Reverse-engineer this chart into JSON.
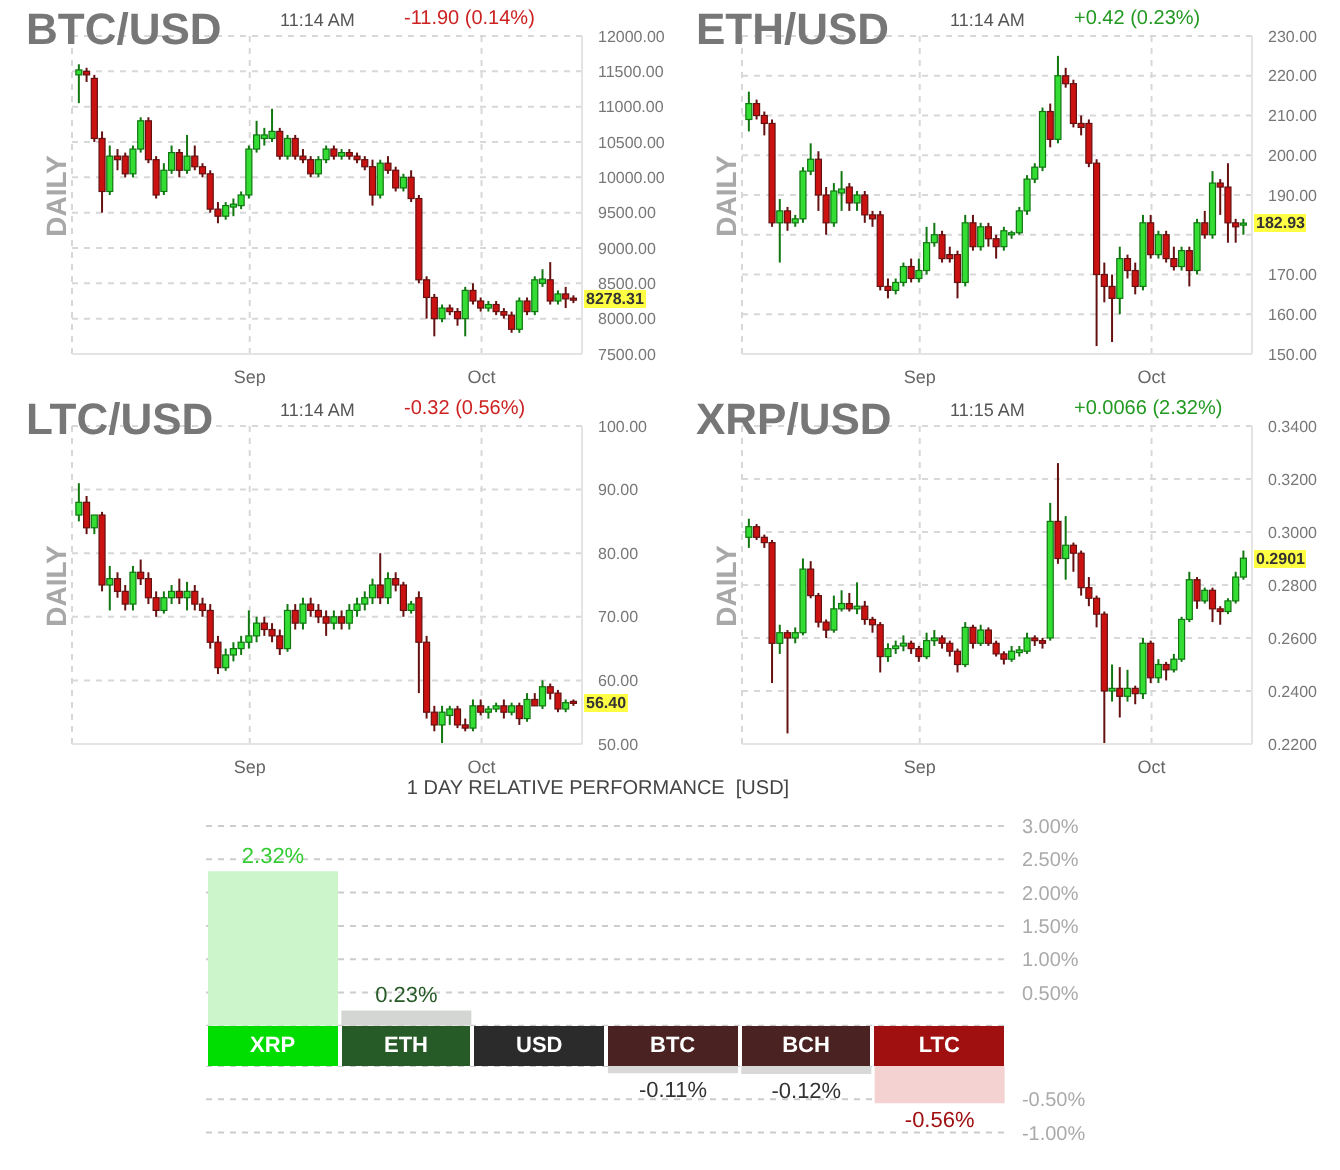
{
  "chart_data": [
    {
      "type": "candlestick",
      "title": "BTC/USD",
      "ylabel": "DAILY",
      "grid": true,
      "x": [
        "--08-10",
        "--08-11",
        "--08-12",
        "--08-13",
        "--08-14",
        "--08-15",
        "--08-16",
        "--08-17",
        "--08-18",
        "--08-19",
        "--08-20",
        "--08-21",
        "--08-22",
        "--08-23",
        "--08-24",
        "--08-25",
        "--08-26",
        "--08-27",
        "--08-28",
        "--08-29",
        "--08-30",
        "--08-31",
        "--09-01",
        "--09-02",
        "--09-03",
        "--09-04",
        "--09-05",
        "--09-06",
        "--09-07",
        "--09-08",
        "--09-09",
        "--09-10",
        "--09-11",
        "--09-12",
        "--09-13",
        "--09-14",
        "--09-15",
        "--09-16",
        "--09-17",
        "--09-18",
        "--09-19",
        "--09-20",
        "--09-21",
        "--09-22",
        "--09-23",
        "--09-24",
        "--09-25",
        "--09-26",
        "--09-27",
        "--09-28",
        "--09-29",
        "--09-30",
        "--10-01",
        "--10-02",
        "--10-03",
        "--10-04",
        "--10-05",
        "--10-06",
        "--10-07",
        "--10-08",
        "--10-09",
        "--10-10",
        "--10-11",
        "--10-12",
        "--10-13"
      ],
      "ohlc": [
        [
          11450,
          11600,
          11050,
          11520
        ],
        [
          11500,
          11550,
          11350,
          11450
        ],
        [
          11400,
          11450,
          10500,
          10550
        ],
        [
          10550,
          10650,
          9500,
          9800
        ],
        [
          9800,
          10450,
          9750,
          10300
        ],
        [
          10300,
          10400,
          10100,
          10250
        ],
        [
          10300,
          10350,
          10000,
          10050
        ],
        [
          10050,
          10450,
          10000,
          10400
        ],
        [
          10400,
          10850,
          10350,
          10800
        ],
        [
          10800,
          10850,
          10200,
          10250
        ],
        [
          10250,
          10300,
          9700,
          9750
        ],
        [
          9800,
          10200,
          9750,
          10100
        ],
        [
          10100,
          10450,
          10050,
          10350
        ],
        [
          10350,
          10400,
          10000,
          10100
        ],
        [
          10100,
          10600,
          10050,
          10300
        ],
        [
          10300,
          10450,
          10100,
          10150
        ],
        [
          10150,
          10200,
          10000,
          10050
        ],
        [
          10050,
          10100,
          9500,
          9550
        ],
        [
          9550,
          9650,
          9350,
          9450
        ],
        [
          9450,
          9650,
          9400,
          9600
        ],
        [
          9580,
          9700,
          9450,
          9620
        ],
        [
          9600,
          9800,
          9550,
          9750
        ],
        [
          9750,
          10450,
          9700,
          10400
        ],
        [
          10400,
          10800,
          10350,
          10600
        ],
        [
          10550,
          10700,
          10450,
          10600
        ],
        [
          10550,
          10970,
          10500,
          10650
        ],
        [
          10650,
          10700,
          10250,
          10300
        ],
        [
          10300,
          10600,
          10250,
          10550
        ],
        [
          10550,
          10600,
          10250,
          10300
        ],
        [
          10300,
          10400,
          10200,
          10250
        ],
        [
          10250,
          10300,
          10000,
          10050
        ],
        [
          10050,
          10300,
          10000,
          10250
        ],
        [
          10250,
          10450,
          10200,
          10400
        ],
        [
          10400,
          10450,
          10250,
          10300
        ],
        [
          10300,
          10400,
          10250,
          10350
        ],
        [
          10350,
          10400,
          10250,
          10300
        ],
        [
          10300,
          10350,
          10200,
          10250
        ],
        [
          10250,
          10300,
          10100,
          10150
        ],
        [
          10150,
          10250,
          9600,
          9750
        ],
        [
          9750,
          10250,
          9700,
          10200
        ],
        [
          10200,
          10300,
          10050,
          10100
        ],
        [
          10100,
          10150,
          9800,
          9850
        ],
        [
          9850,
          10050,
          9800,
          10000
        ],
        [
          10000,
          10100,
          9650,
          9700
        ],
        [
          9700,
          9750,
          8500,
          8550
        ],
        [
          8550,
          8600,
          8000,
          8300
        ],
        [
          8300,
          8350,
          7750,
          8000
        ],
        [
          8000,
          8200,
          7950,
          8150
        ],
        [
          8150,
          8200,
          8050,
          8100
        ],
        [
          8100,
          8150,
          7900,
          8000
        ],
        [
          8000,
          8450,
          7750,
          8400
        ],
        [
          8400,
          8500,
          8200,
          8250
        ],
        [
          8250,
          8300,
          8100,
          8150
        ],
        [
          8150,
          8250,
          8100,
          8200
        ],
        [
          8200,
          8250,
          8050,
          8100
        ],
        [
          8100,
          8150,
          8000,
          8050
        ],
        [
          8050,
          8100,
          7800,
          7850
        ],
        [
          7850,
          8300,
          7800,
          8250
        ],
        [
          8250,
          8300,
          8050,
          8100
        ],
        [
          8100,
          8600,
          8050,
          8550
        ],
        [
          8500,
          8700,
          8450,
          8560
        ],
        [
          8550,
          8800,
          8200,
          8250
        ],
        [
          8250,
          8400,
          8200,
          8350
        ],
        [
          8350,
          8450,
          8150,
          8280
        ],
        [
          8290,
          8330,
          8220,
          8278.31
        ]
      ],
      "xlim": [
        "--08-09",
        "--10-14"
      ],
      "xticks": [
        {
          "value": "--09-01",
          "label": "Sep"
        },
        {
          "value": "--10-01",
          "label": "Oct"
        }
      ],
      "ylim": [
        7500,
        12000
      ],
      "yticks": [
        {
          "value": 7500,
          "label": "7500.00"
        },
        {
          "value": 8000,
          "label": "8000.00"
        },
        {
          "value": 8500,
          "label": "8500.00"
        },
        {
          "value": 9000,
          "label": "9000.00"
        },
        {
          "value": 9500,
          "label": "9500.00"
        },
        {
          "value": 10000,
          "label": "10000.00"
        },
        {
          "value": 10500,
          "label": "10500.00"
        },
        {
          "value": 11000,
          "label": "11000.00"
        },
        {
          "value": 11500,
          "label": "11500.00"
        },
        {
          "value": 12000,
          "label": "12000.00"
        }
      ],
      "annotations": [
        "11:14 AM",
        "-11.90 (0.14%)",
        {
          "text": "8278.31",
          "x": "--10-13",
          "y": 8278.31
        }
      ]
    },
    {
      "type": "candlestick",
      "title": "ETH/USD",
      "ylabel": "DAILY",
      "grid": true,
      "x": [
        "--08-10",
        "--08-11",
        "--08-12",
        "--08-13",
        "--08-14",
        "--08-15",
        "--08-16",
        "--08-17",
        "--08-18",
        "--08-19",
        "--08-20",
        "--08-21",
        "--08-22",
        "--08-23",
        "--08-24",
        "--08-25",
        "--08-26",
        "--08-27",
        "--08-28",
        "--08-29",
        "--08-30",
        "--08-31",
        "--09-01",
        "--09-02",
        "--09-03",
        "--09-04",
        "--09-05",
        "--09-06",
        "--09-07",
        "--09-08",
        "--09-09",
        "--09-10",
        "--09-11",
        "--09-12",
        "--09-13",
        "--09-14",
        "--09-15",
        "--09-16",
        "--09-17",
        "--09-18",
        "--09-19",
        "--09-20",
        "--09-21",
        "--09-22",
        "--09-23",
        "--09-24",
        "--09-25",
        "--09-26",
        "--09-27",
        "--09-28",
        "--09-29",
        "--09-30",
        "--10-01",
        "--10-02",
        "--10-03",
        "--10-04",
        "--10-05",
        "--10-06",
        "--10-07",
        "--10-08",
        "--10-09",
        "--10-10",
        "--10-11",
        "--10-12",
        "--10-13"
      ],
      "ohlc": [
        [
          209,
          216,
          206,
          213
        ],
        [
          213,
          214,
          209,
          210
        ],
        [
          210,
          211,
          205,
          208
        ],
        [
          208,
          209,
          182,
          183
        ],
        [
          183,
          189,
          173,
          186
        ],
        [
          186,
          187,
          181,
          183
        ],
        [
          183,
          185,
          182,
          184
        ],
        [
          184,
          197,
          183,
          196
        ],
        [
          196,
          203,
          195,
          199
        ],
        [
          199,
          201,
          186,
          190
        ],
        [
          190,
          192,
          180,
          183
        ],
        [
          183,
          193,
          182,
          191
        ],
        [
          190.5,
          196,
          186,
          191.5
        ],
        [
          192,
          193,
          186,
          188
        ],
        [
          188,
          191,
          186,
          190
        ],
        [
          190,
          191,
          183,
          185
        ],
        [
          185,
          186,
          182,
          184
        ],
        [
          185,
          186,
          166,
          167
        ],
        [
          167,
          169,
          164,
          166
        ],
        [
          166,
          169,
          165,
          168
        ],
        [
          168,
          173,
          167,
          172
        ],
        [
          172,
          174,
          168,
          169
        ],
        [
          169,
          174,
          168,
          171
        ],
        [
          171,
          182,
          170,
          178
        ],
        [
          178,
          183,
          177,
          180
        ],
        [
          180,
          181,
          173,
          174
        ],
        [
          175,
          177,
          173,
          174
        ],
        [
          175,
          176,
          164,
          168
        ],
        [
          168,
          185,
          167,
          183
        ],
        [
          183,
          185,
          176,
          177
        ],
        [
          177,
          183,
          176,
          182
        ],
        [
          182,
          183,
          177,
          179
        ],
        [
          179,
          180,
          174,
          177
        ],
        [
          177,
          182,
          176,
          181
        ],
        [
          180,
          181,
          179,
          180.5
        ],
        [
          180.5,
          187,
          180,
          186
        ],
        [
          186,
          195,
          185,
          194
        ],
        [
          194,
          198,
          193,
          197
        ],
        [
          197,
          212,
          196,
          211
        ],
        [
          211,
          213,
          202,
          204
        ],
        [
          204,
          225,
          203,
          220
        ],
        [
          220,
          222,
          217,
          218
        ],
        [
          218,
          219,
          207,
          208
        ],
        [
          208,
          210,
          205,
          207
        ],
        [
          208,
          209,
          197,
          198
        ],
        [
          198,
          199,
          152,
          170
        ],
        [
          170,
          173,
          163,
          167
        ],
        [
          167,
          170,
          153,
          164
        ],
        [
          164,
          177,
          160,
          174
        ],
        [
          174,
          175,
          169,
          171
        ],
        [
          171,
          173,
          165,
          167
        ],
        [
          167,
          185,
          166,
          183
        ],
        [
          183,
          185,
          174,
          175
        ],
        [
          175,
          181,
          174,
          180
        ],
        [
          180,
          181,
          173,
          174
        ],
        [
          174,
          177,
          171,
          172
        ],
        [
          172,
          177,
          171,
          176
        ],
        [
          176,
          177,
          167,
          171
        ],
        [
          171,
          184,
          170,
          183
        ],
        [
          183,
          186,
          179,
          180
        ],
        [
          180,
          196,
          179,
          193
        ],
        [
          193,
          194,
          185,
          192
        ],
        [
          192,
          198,
          178,
          183
        ],
        [
          183,
          184,
          178,
          182
        ],
        [
          182.5,
          184,
          180,
          182.93
        ]
      ],
      "xlim": [
        "--08-09",
        "--10-14"
      ],
      "xticks": [
        {
          "value": "--09-01",
          "label": "Sep"
        },
        {
          "value": "--10-01",
          "label": "Oct"
        }
      ],
      "ylim": [
        150,
        230
      ],
      "yticks": [
        {
          "value": 150,
          "label": "150.00"
        },
        {
          "value": 160,
          "label": "160.00"
        },
        {
          "value": 170,
          "label": "170.00"
        },
        {
          "value": 180,
          "label": null
        },
        {
          "value": 190,
          "label": "190.00"
        },
        {
          "value": 200,
          "label": "200.00"
        },
        {
          "value": 210,
          "label": "210.00"
        },
        {
          "value": 220,
          "label": "220.00"
        },
        {
          "value": 230,
          "label": "230.00"
        }
      ],
      "annotations": [
        "11:14 AM",
        "+0.42 (0.23%)",
        {
          "text": "182.93",
          "x": "--10-13",
          "y": 182.93
        }
      ]
    },
    {
      "type": "candlestick",
      "title": "LTC/USD",
      "ylabel": "DAILY",
      "grid": true,
      "x": [
        "--08-10",
        "--08-11",
        "--08-12",
        "--08-13",
        "--08-14",
        "--08-15",
        "--08-16",
        "--08-17",
        "--08-18",
        "--08-19",
        "--08-20",
        "--08-21",
        "--08-22",
        "--08-23",
        "--08-24",
        "--08-25",
        "--08-26",
        "--08-27",
        "--08-28",
        "--08-29",
        "--08-30",
        "--08-31",
        "--09-01",
        "--09-02",
        "--09-03",
        "--09-04",
        "--09-05",
        "--09-06",
        "--09-07",
        "--09-08",
        "--09-09",
        "--09-10",
        "--09-11",
        "--09-12",
        "--09-13",
        "--09-14",
        "--09-15",
        "--09-16",
        "--09-17",
        "--09-18",
        "--09-19",
        "--09-20",
        "--09-21",
        "--09-22",
        "--09-23",
        "--09-24",
        "--09-25",
        "--09-26",
        "--09-27",
        "--09-28",
        "--09-29",
        "--09-30",
        "--10-01",
        "--10-02",
        "--10-03",
        "--10-04",
        "--10-05",
        "--10-06",
        "--10-07",
        "--10-08",
        "--10-09",
        "--10-10",
        "--10-11",
        "--10-12",
        "--10-13"
      ],
      "ohlc": [
        [
          86,
          91,
          85,
          88
        ],
        [
          88,
          89,
          83,
          84
        ],
        [
          84,
          86,
          83,
          86
        ],
        [
          86,
          86.5,
          74,
          75
        ],
        [
          75,
          78,
          71,
          76
        ],
        [
          76,
          77,
          73,
          74
        ],
        [
          74,
          75,
          71,
          72
        ],
        [
          72,
          78,
          71,
          77
        ],
        [
          77,
          79,
          75,
          76
        ],
        [
          76,
          77,
          72,
          73
        ],
        [
          73,
          74,
          70,
          71
        ],
        [
          71,
          74,
          70.5,
          73
        ],
        [
          73,
          75,
          72,
          74
        ],
        [
          74,
          76,
          72,
          73
        ],
        [
          73,
          75.5,
          71,
          74
        ],
        [
          74,
          75,
          71,
          72
        ],
        [
          72,
          73,
          70,
          71
        ],
        [
          71,
          72,
          65,
          66
        ],
        [
          66,
          67,
          61,
          62
        ],
        [
          62,
          65,
          61.5,
          64
        ],
        [
          64,
          66,
          63,
          65
        ],
        [
          65,
          67,
          64,
          66
        ],
        [
          66,
          71,
          65,
          67
        ],
        [
          67,
          70,
          66,
          69
        ],
        [
          69,
          70,
          67,
          68
        ],
        [
          68,
          69,
          66,
          67
        ],
        [
          67,
          68,
          64,
          65
        ],
        [
          65,
          72,
          64.5,
          71
        ],
        [
          71,
          72,
          68,
          69
        ],
        [
          69,
          73,
          68,
          72
        ],
        [
          72,
          73,
          70,
          71
        ],
        [
          71,
          72,
          69,
          70
        ],
        [
          70,
          71,
          67,
          69
        ],
        [
          69,
          71,
          68,
          70
        ],
        [
          70,
          71,
          68,
          69
        ],
        [
          69,
          72,
          68,
          71
        ],
        [
          71,
          73,
          70,
          72
        ],
        [
          72,
          74,
          71,
          73
        ],
        [
          73,
          76,
          72,
          75
        ],
        [
          75,
          80,
          72,
          73
        ],
        [
          73,
          77,
          72,
          76
        ],
        [
          76,
          77,
          74,
          75
        ],
        [
          75,
          75.5,
          70,
          71
        ],
        [
          71,
          72.5,
          70.5,
          72
        ],
        [
          73,
          74,
          58,
          66
        ],
        [
          66,
          67,
          54,
          55
        ],
        [
          55,
          56,
          52,
          53
        ],
        [
          53,
          56,
          50,
          55
        ],
        [
          54.5,
          56,
          53,
          55.5
        ],
        [
          55.5,
          56,
          52.5,
          53
        ],
        [
          53,
          54,
          52,
          52.5
        ],
        [
          52.5,
          57,
          52,
          56
        ],
        [
          56,
          57,
          54.5,
          55
        ],
        [
          55,
          56,
          54,
          55.5
        ],
        [
          55.5,
          56.5,
          55,
          56
        ],
        [
          56,
          57,
          54,
          55
        ],
        [
          55,
          56.5,
          54.5,
          56
        ],
        [
          56,
          56.5,
          53,
          54
        ],
        [
          54,
          58,
          53.5,
          57
        ],
        [
          57,
          58,
          56,
          56
        ],
        [
          56,
          60,
          55.5,
          59
        ],
        [
          59,
          59.5,
          57,
          58
        ],
        [
          58,
          58.5,
          55,
          55.5
        ],
        [
          55.5,
          57,
          55,
          56.5
        ],
        [
          56.7,
          57,
          56,
          56.4
        ]
      ],
      "xlim": [
        "--08-09",
        "--10-14"
      ],
      "xticks": [
        {
          "value": "--09-01",
          "label": "Sep"
        },
        {
          "value": "--10-01",
          "label": "Oct"
        }
      ],
      "ylim": [
        50,
        100
      ],
      "yticks": [
        {
          "value": 50,
          "label": "50.00"
        },
        {
          "value": 60,
          "label": "60.00"
        },
        {
          "value": 70,
          "label": "70.00"
        },
        {
          "value": 80,
          "label": "80.00"
        },
        {
          "value": 90,
          "label": "90.00"
        },
        {
          "value": 100,
          "label": "100.00"
        }
      ],
      "annotations": [
        "11:14 AM",
        "-0.32 (0.56%)",
        {
          "text": "56.40",
          "x": "--10-13",
          "y": 56.4
        }
      ]
    },
    {
      "type": "candlestick",
      "title": "XRP/USD",
      "ylabel": "DAILY",
      "grid": true,
      "x": [
        "--08-10",
        "--08-11",
        "--08-12",
        "--08-13",
        "--08-14",
        "--08-15",
        "--08-16",
        "--08-17",
        "--08-18",
        "--08-19",
        "--08-20",
        "--08-21",
        "--08-22",
        "--08-23",
        "--08-24",
        "--08-25",
        "--08-26",
        "--08-27",
        "--08-28",
        "--08-29",
        "--08-30",
        "--08-31",
        "--09-01",
        "--09-02",
        "--09-03",
        "--09-04",
        "--09-05",
        "--09-06",
        "--09-07",
        "--09-08",
        "--09-09",
        "--09-10",
        "--09-11",
        "--09-12",
        "--09-13",
        "--09-14",
        "--09-15",
        "--09-16",
        "--09-17",
        "--09-18",
        "--09-19",
        "--09-20",
        "--09-21",
        "--09-22",
        "--09-23",
        "--09-24",
        "--09-25",
        "--09-26",
        "--09-27",
        "--09-28",
        "--09-29",
        "--09-30",
        "--10-01",
        "--10-02",
        "--10-03",
        "--10-04",
        "--10-05",
        "--10-06",
        "--10-07",
        "--10-08",
        "--10-09",
        "--10-10",
        "--10-11",
        "--10-12",
        "--10-13"
      ],
      "ohlc": [
        [
          0.298,
          0.305,
          0.294,
          0.302
        ],
        [
          0.302,
          0.303,
          0.297,
          0.298
        ],
        [
          0.298,
          0.299,
          0.294,
          0.296
        ],
        [
          0.296,
          0.297,
          0.243,
          0.258
        ],
        [
          0.258,
          0.265,
          0.254,
          0.262
        ],
        [
          0.262,
          0.263,
          0.224,
          0.26
        ],
        [
          0.26,
          0.264,
          0.258,
          0.262
        ],
        [
          0.262,
          0.29,
          0.261,
          0.286
        ],
        [
          0.286,
          0.289,
          0.275,
          0.276
        ],
        [
          0.276,
          0.277,
          0.264,
          0.266
        ],
        [
          0.266,
          0.267,
          0.26,
          0.263
        ],
        [
          0.263,
          0.276,
          0.262,
          0.271
        ],
        [
          0.271,
          0.278,
          0.27,
          0.273
        ],
        [
          0.273,
          0.277,
          0.27,
          0.271
        ],
        [
          0.271,
          0.281,
          0.269,
          0.272
        ],
        [
          0.272,
          0.274,
          0.265,
          0.267
        ],
        [
          0.267,
          0.268,
          0.262,
          0.265
        ],
        [
          0.265,
          0.266,
          0.247,
          0.253
        ],
        [
          0.253,
          0.258,
          0.251,
          0.256
        ],
        [
          0.256,
          0.259,
          0.254,
          0.257
        ],
        [
          0.257,
          0.261,
          0.255,
          0.258
        ],
        [
          0.258,
          0.259,
          0.254,
          0.256
        ],
        [
          0.256,
          0.257,
          0.251,
          0.253
        ],
        [
          0.253,
          0.262,
          0.252,
          0.259
        ],
        [
          0.259,
          0.263,
          0.257,
          0.26
        ],
        [
          0.26,
          0.261,
          0.256,
          0.258
        ],
        [
          0.258,
          0.259,
          0.253,
          0.255
        ],
        [
          0.255,
          0.256,
          0.247,
          0.25
        ],
        [
          0.25,
          0.266,
          0.249,
          0.264
        ],
        [
          0.264,
          0.265,
          0.256,
          0.258
        ],
        [
          0.258,
          0.265,
          0.257,
          0.263
        ],
        [
          0.263,
          0.264,
          0.257,
          0.258
        ],
        [
          0.258,
          0.259,
          0.253,
          0.254
        ],
        [
          0.254,
          0.255,
          0.25,
          0.252
        ],
        [
          0.252,
          0.257,
          0.251,
          0.255
        ],
        [
          0.2545,
          0.257,
          0.253,
          0.2555
        ],
        [
          0.255,
          0.262,
          0.254,
          0.26
        ],
        [
          0.26,
          0.261,
          0.257,
          0.259
        ],
        [
          0.259,
          0.26,
          0.256,
          0.258
        ],
        [
          0.26,
          0.311,
          0.259,
          0.304
        ],
        [
          0.304,
          0.326,
          0.288,
          0.29
        ],
        [
          0.29,
          0.306,
          0.282,
          0.295
        ],
        [
          0.295,
          0.296,
          0.285,
          0.292
        ],
        [
          0.292,
          0.293,
          0.276,
          0.279
        ],
        [
          0.279,
          0.283,
          0.272,
          0.275
        ],
        [
          0.275,
          0.276,
          0.264,
          0.269
        ],
        [
          0.269,
          0.27,
          0.22,
          0.24
        ],
        [
          0.24,
          0.25,
          0.236,
          0.241
        ],
        [
          0.241,
          0.249,
          0.23,
          0.238
        ],
        [
          0.238,
          0.248,
          0.236,
          0.241
        ],
        [
          0.241,
          0.242,
          0.235,
          0.239
        ],
        [
          0.239,
          0.26,
          0.237,
          0.258
        ],
        [
          0.258,
          0.259,
          0.243,
          0.245
        ],
        [
          0.245,
          0.252,
          0.243,
          0.25
        ],
        [
          0.25,
          0.251,
          0.244,
          0.248
        ],
        [
          0.248,
          0.254,
          0.247,
          0.252
        ],
        [
          0.252,
          0.268,
          0.251,
          0.267
        ],
        [
          0.267,
          0.285,
          0.266,
          0.282
        ],
        [
          0.282,
          0.283,
          0.271,
          0.274
        ],
        [
          0.274,
          0.279,
          0.273,
          0.278
        ],
        [
          0.278,
          0.279,
          0.266,
          0.271
        ],
        [
          0.271,
          0.272,
          0.265,
          0.27
        ],
        [
          0.27,
          0.275,
          0.269,
          0.274
        ],
        [
          0.274,
          0.285,
          0.273,
          0.283
        ],
        [
          0.283,
          0.293,
          0.282,
          0.2901
        ]
      ],
      "xlim": [
        "--08-09",
        "--10-14"
      ],
      "xticks": [
        {
          "value": "--09-01",
          "label": "Sep"
        },
        {
          "value": "--10-01",
          "label": "Oct"
        }
      ],
      "ylim": [
        0.22,
        0.34
      ],
      "yticks": [
        {
          "value": 0.22,
          "label": "0.2200"
        },
        {
          "value": 0.24,
          "label": "0.2400"
        },
        {
          "value": 0.26,
          "label": "0.2600"
        },
        {
          "value": 0.28,
          "label": "0.2800"
        },
        {
          "value": 0.3,
          "label": "0.3000"
        },
        {
          "value": 0.32,
          "label": "0.3200"
        },
        {
          "value": 0.34,
          "label": "0.3400"
        }
      ],
      "annotations": [
        "11:15 AM",
        "+0.0066 (2.32%)",
        {
          "text": "0.2901",
          "x": "--10-13",
          "y": 0.2901
        }
      ]
    },
    {
      "type": "bar",
      "title": "1 DAY RELATIVE PERFORMANCE  [USD]",
      "grid": "y",
      "categories": [
        "XRP",
        "ETH",
        "USD",
        "BTC",
        "BCH",
        "LTC"
      ],
      "values": [
        2.32,
        0.23,
        null,
        null,
        null,
        null
      ],
      "colors": [
        "#ccf5cc",
        "#d3d6d3",
        null,
        "#d8d8d8",
        "#d8d8d8",
        "#f4d2d2"
      ],
      "value_labels": [
        "2.32%",
        "0.23%",
        null,
        null,
        null,
        null
      ],
      "ylim": [
        0,
        3
      ],
      "yticks": [
        {
          "value": 0.5,
          "label": "0.50%"
        },
        {
          "value": 1,
          "label": "1.00%"
        },
        {
          "value": 1.5,
          "label": "1.50%"
        },
        {
          "value": 2,
          "label": "2.00%"
        },
        {
          "value": 2.5,
          "label": "2.50%"
        },
        {
          "value": 3,
          "label": "3.00%"
        }
      ]
    },
    {
      "type": "bar",
      "grid": "y",
      "tick_labels": "y",
      "categories": [
        "XRP",
        "ETH",
        "USD",
        "BTC",
        "BCH",
        "LTC"
      ],
      "values": [
        null,
        null,
        null,
        -0.11,
        -0.12,
        -0.56
      ],
      "colors": [
        "#ccf5cc",
        "#d3d6d3",
        null,
        "#d8d8d8",
        "#d8d8d8",
        "#f4d2d2"
      ],
      "value_labels": [
        null,
        null,
        null,
        "-0.11%",
        "-0.12%",
        "-0.56%"
      ],
      "ylim": [
        -1,
        0
      ],
      "yticks": [
        {
          "value": -1,
          "label": "-1.00%"
        },
        {
          "value": -0.5,
          "label": "-0.50%"
        }
      ]
    }
  ]
}
